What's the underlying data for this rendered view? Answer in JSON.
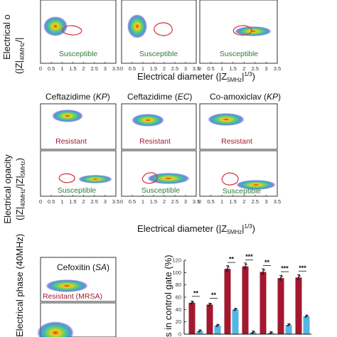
{
  "row1": {
    "xlabel": "Electrical diameter (|Z",
    "xlabel_sub": "5MHz",
    "xlabel_end": "|",
    "xlabel_sup": "1/3",
    "xlabel_close": ")",
    "ylabel_partial": "Electrical o",
    "ylabel_line2": "(|Z|",
    "ylabel_sub": "40MHz",
    "ylabel_end": "/|",
    "xticks": [
      "0",
      "0.5",
      "1",
      "1.5",
      "2",
      "2.5",
      "3",
      "3.5"
    ],
    "panels": [
      {
        "label": "Susceptible"
      },
      {
        "label": "Susceptible"
      },
      {
        "label": "Susceptible"
      }
    ]
  },
  "row2": {
    "ylabel": "Electrical opacity",
    "ylabel_line2": "(|Z|",
    "ylabel_sub1": "40MHz",
    "ylabel_mid": "/|Z|",
    "ylabel_sub2": "5MHz",
    "ylabel_close": ")",
    "xlabel": "Electrical diameter (|Z",
    "xlabel_sub": "5MHz",
    "xlabel_end": "|",
    "xlabel_sup": "1/3",
    "xlabel_close": ")",
    "xticks": [
      "0",
      "0.5",
      "1",
      "1.5",
      "2",
      "2.5",
      "3",
      "3.5"
    ],
    "columns": [
      {
        "title": "Ceftazidime",
        "organism": "KP",
        "top_label": "Resistant",
        "bottom_label": "Susceptible"
      },
      {
        "title": "Ceftazidime",
        "organism": "EC",
        "top_label": "Resistant",
        "bottom_label": "Susceptible"
      },
      {
        "title": "Co-amoxiclav",
        "organism": "KP",
        "top_label": "Resistant",
        "bottom_label": "Susceptible"
      }
    ]
  },
  "row3": {
    "ylabel": "Electrical phase (40MHz)",
    "panel_title": "Cefoxitin",
    "panel_organism": "SA",
    "panel_label": "Resistant (MRSA)"
  },
  "chart_data": {
    "type": "bar",
    "ylabel_partial": "s in control gate (%)",
    "yticks": [
      "0",
      "20",
      "40",
      "60",
      "80",
      "100",
      "120"
    ],
    "ylim": [
      0,
      120
    ],
    "colors": {
      "resistant": "#a3182f",
      "susceptible": "#52b6e6"
    },
    "groups": [
      {
        "resistant": 51,
        "susceptible": 5,
        "sig": "**"
      },
      {
        "resistant": 48,
        "susceptible": 14,
        "sig": "**"
      },
      {
        "resistant": 106,
        "susceptible": 40,
        "sig": "**"
      },
      {
        "resistant": 110,
        "susceptible": 3,
        "sig": "***"
      },
      {
        "resistant": 101,
        "susceptible": 2,
        "sig": "**"
      },
      {
        "resistant": 91,
        "susceptible": 15,
        "sig": "***"
      },
      {
        "resistant": 92,
        "susceptible": 29,
        "sig": "***"
      }
    ]
  }
}
